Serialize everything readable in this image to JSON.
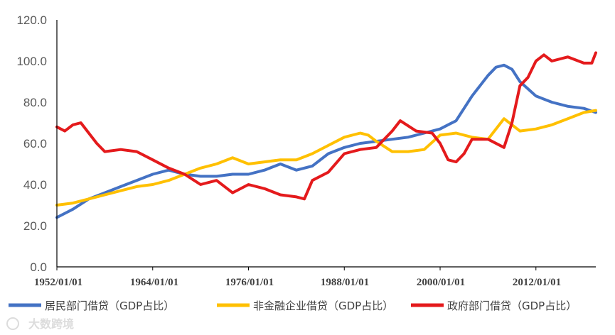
{
  "chart_data": {
    "type": "line",
    "title": "",
    "xlabel": "",
    "ylabel": "",
    "x_tick_labels": [
      "1952/01/01",
      "1964/01/01",
      "1976/01/01",
      "1988/01/01",
      "2000/01/01",
      "2012/01/01"
    ],
    "y_tick_labels": [
      "0.0",
      "20.0",
      "40.0",
      "60.0",
      "80.0",
      "100.0",
      "120.0"
    ],
    "ylim": [
      0,
      120
    ],
    "xlim": [
      1952,
      2019.5
    ],
    "grid": false,
    "legend_position": "bottom",
    "series": [
      {
        "name": "居民部门借贷（GDP占比）",
        "color": "#4472C4",
        "x": [
          1952,
          1953,
          1954,
          1956,
          1958,
          1960,
          1962,
          1964,
          1966,
          1968,
          1970,
          1972,
          1974,
          1976,
          1978,
          1980,
          1982,
          1984,
          1986,
          1988,
          1990,
          1992,
          1994,
          1996,
          1998,
          2000,
          2002,
          2004,
          2006,
          2007,
          2008,
          2009,
          2010,
          2012,
          2014,
          2016,
          2018,
          2019.5
        ],
        "y": [
          24,
          26,
          28,
          33,
          36,
          39,
          42,
          45,
          47,
          45,
          44,
          44,
          45,
          45,
          47,
          50,
          47,
          49,
          55,
          58,
          60,
          61,
          62,
          63,
          65,
          67,
          71,
          83,
          93,
          97,
          98,
          96,
          90,
          83,
          80,
          78,
          77,
          75
        ]
      },
      {
        "name": "非金融企业借贷（GDP占比）",
        "color": "#FFC000",
        "x": [
          1952,
          1954,
          1956,
          1958,
          1960,
          1962,
          1964,
          1966,
          1968,
          1970,
          1972,
          1974,
          1976,
          1978,
          1980,
          1982,
          1984,
          1986,
          1988,
          1990,
          1991,
          1992,
          1994,
          1996,
          1998,
          2000,
          2002,
          2004,
          2006,
          2008,
          2009,
          2010,
          2012,
          2014,
          2016,
          2018,
          2019.5
        ],
        "y": [
          30,
          31,
          33,
          35,
          37,
          39,
          40,
          42,
          45,
          48,
          50,
          53,
          50,
          51,
          52,
          52,
          55,
          59,
          63,
          65,
          64,
          61,
          56,
          56,
          57,
          64,
          65,
          63,
          62,
          72,
          69,
          66,
          67,
          69,
          72,
          75,
          76
        ]
      },
      {
        "name": "政府部门借贷（GDP占比）",
        "color": "#E41A1C",
        "x": [
          1952,
          1953,
          1954,
          1955,
          1956,
          1957,
          1958,
          1960,
          1962,
          1964,
          1966,
          1968,
          1970,
          1972,
          1974,
          1976,
          1978,
          1980,
          1982,
          1983,
          1984,
          1986,
          1988,
          1990,
          1992,
          1994,
          1995,
          1997,
          1999,
          2000,
          2001,
          2002,
          2003,
          2004,
          2006,
          2008,
          2009,
          2010,
          2011,
          2012,
          2013,
          2014,
          2016,
          2018,
          2019,
          2019.5
        ],
        "y": [
          68,
          66,
          69,
          70,
          65,
          60,
          56,
          57,
          56,
          52,
          48,
          45,
          40,
          42,
          36,
          40,
          38,
          35,
          34,
          33,
          42,
          46,
          55,
          57,
          58,
          66,
          71,
          66,
          65,
          60,
          52,
          51,
          55,
          62,
          62,
          58,
          70,
          88,
          92,
          100,
          103,
          100,
          102,
          99,
          99,
          104
        ]
      }
    ]
  },
  "watermark": "大数跨境"
}
